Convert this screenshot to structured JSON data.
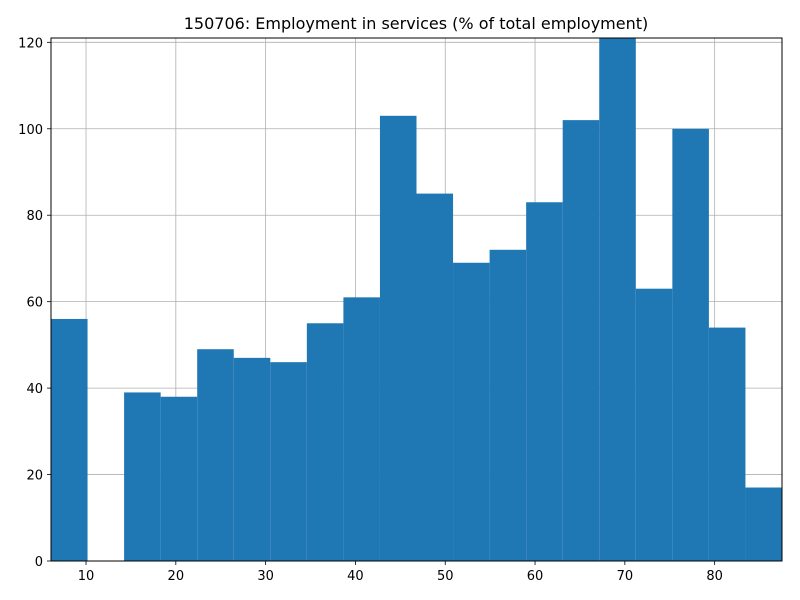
{
  "chart_data": {
    "type": "bar",
    "title": "150706: Employment in services (% of total employment)",
    "xlabel": "",
    "ylabel": "",
    "bin_edges": [
      6.1,
      10.17,
      14.24,
      18.31,
      22.38,
      26.45,
      30.52,
      34.59,
      38.66,
      42.73,
      46.8,
      50.87,
      54.94,
      59.01,
      63.08,
      67.15,
      71.22,
      75.29,
      79.36,
      83.43,
      87.5
    ],
    "values": [
      56,
      0,
      39,
      38,
      49,
      47,
      46,
      55,
      61,
      103,
      85,
      69,
      72,
      83,
      102,
      121,
      63,
      100,
      54,
      17
    ],
    "xlim": [
      6.1,
      87.5
    ],
    "ylim": [
      0,
      121
    ],
    "xticks": [
      10,
      20,
      30,
      40,
      50,
      60,
      70,
      80
    ],
    "yticks": [
      0,
      20,
      40,
      60,
      80,
      100,
      120
    ],
    "grid": true,
    "bar_color": "#1f77b4"
  }
}
